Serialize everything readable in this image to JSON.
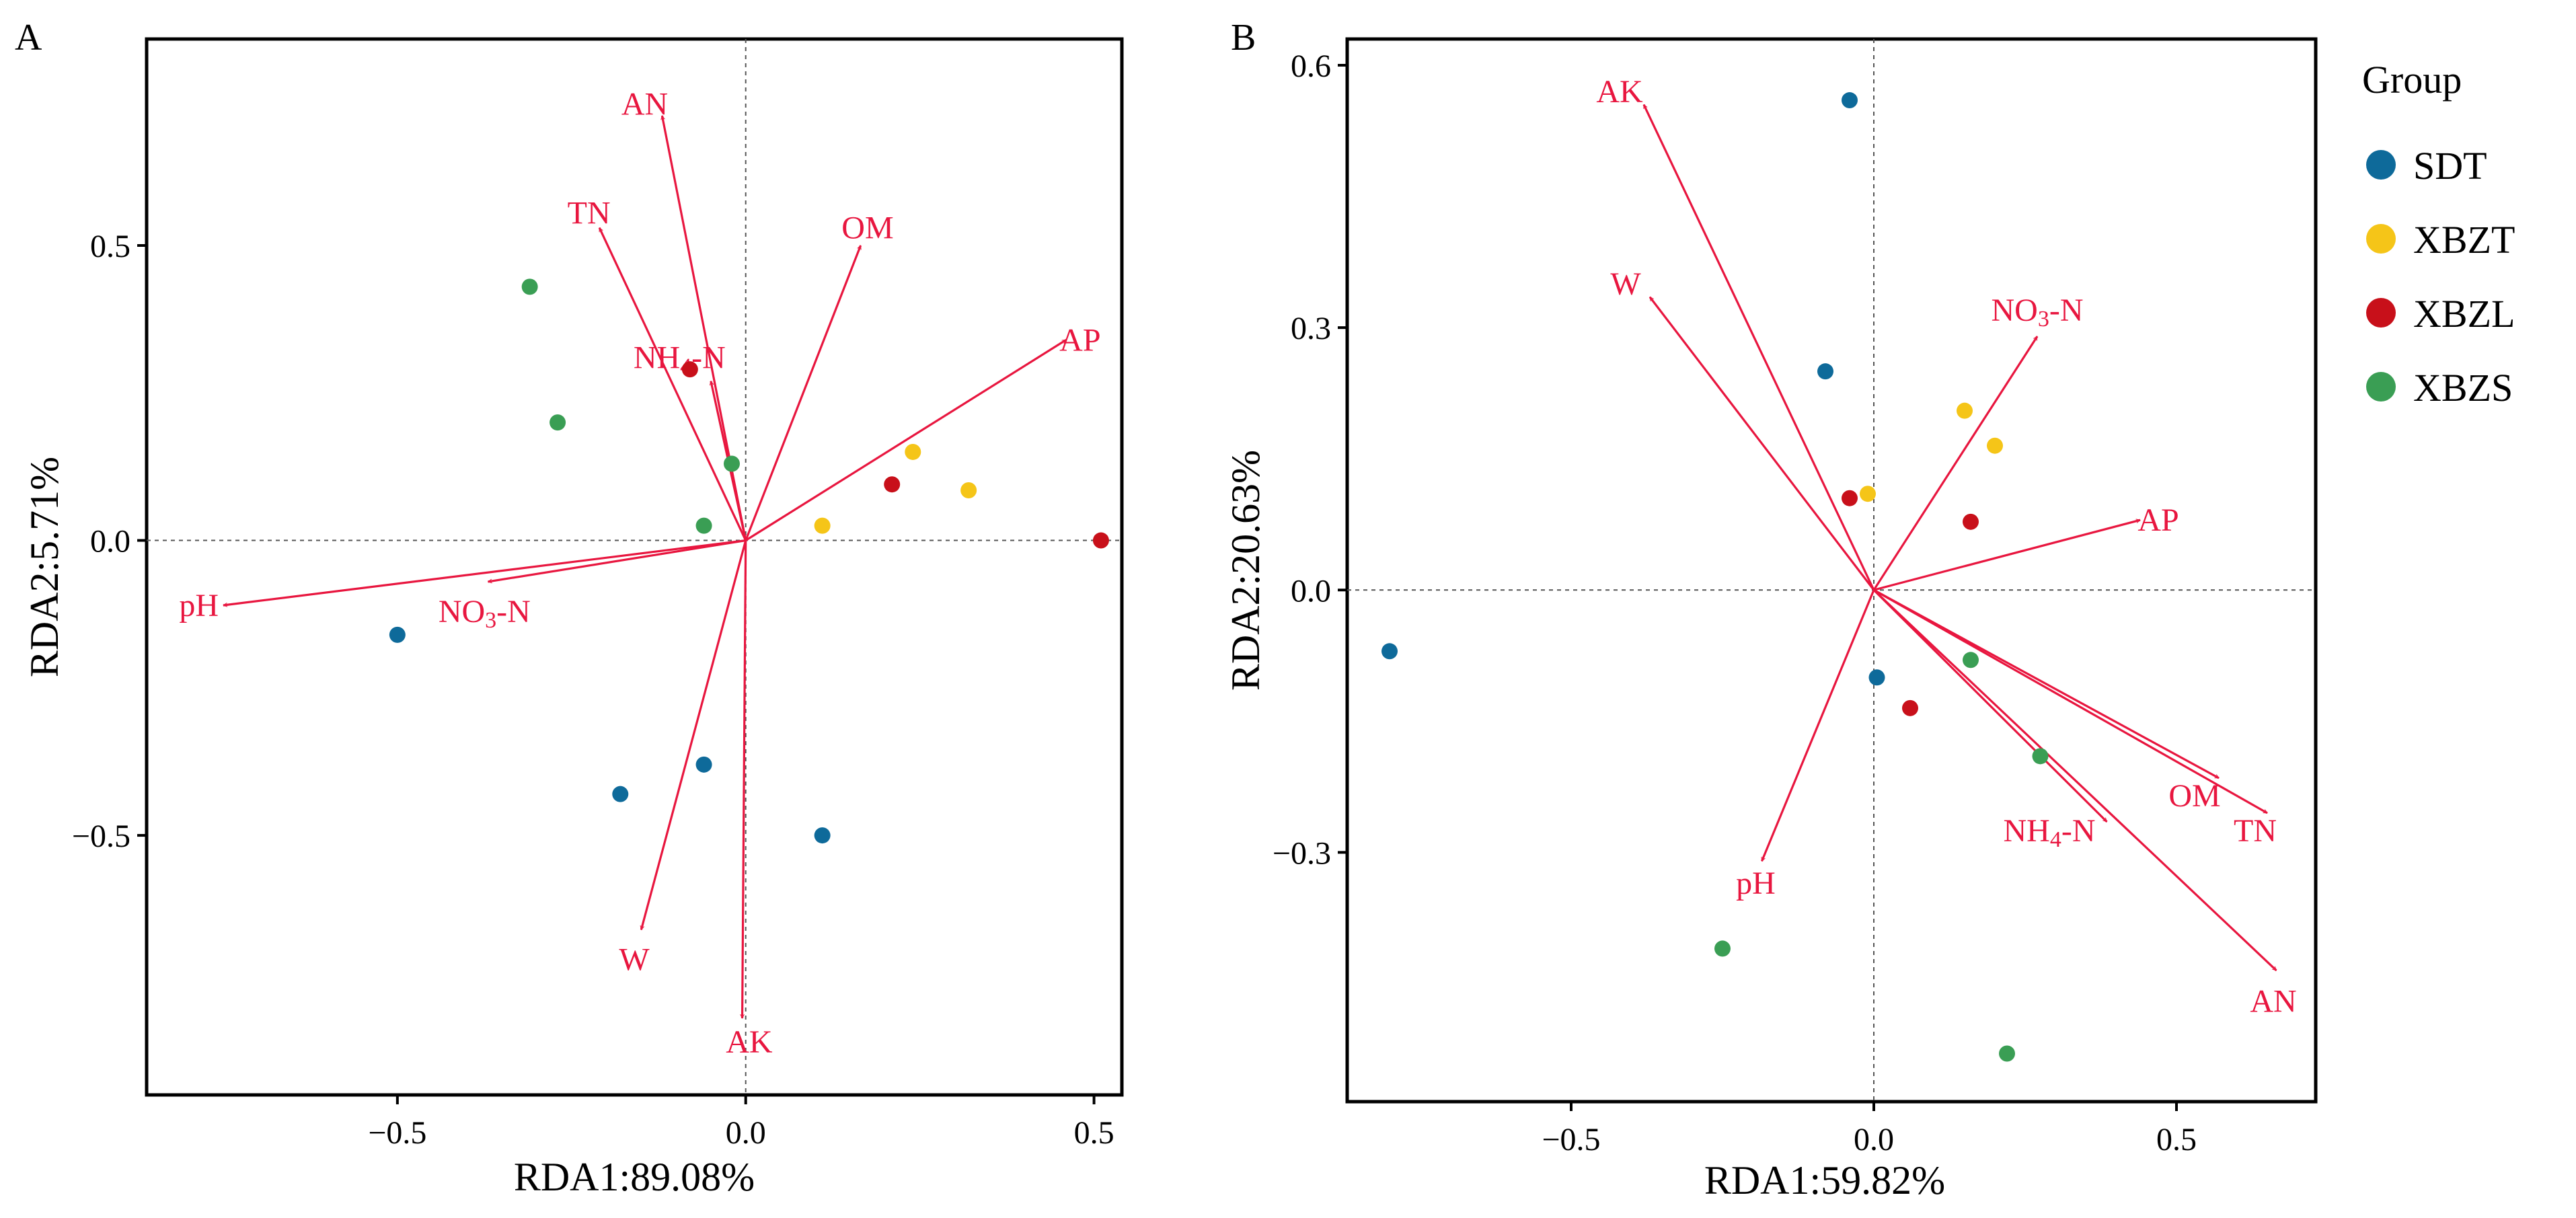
{
  "colors": {
    "arrow": "#E8163F",
    "axis": "#000000",
    "zero_line": "#555555",
    "groups": {
      "SDT": "#0E6A9A",
      "XBZT": "#F5C518",
      "XBZL": "#C8101A",
      "XBZS": "#3A9E54"
    }
  },
  "legend": {
    "title": "Group",
    "items": [
      {
        "label": "SDT",
        "color": "#0E6A9A"
      },
      {
        "label": "XBZT",
        "color": "#F5C518"
      },
      {
        "label": "XBZL",
        "color": "#C8101A"
      },
      {
        "label": "XBZS",
        "color": "#3A9E54"
      }
    ]
  },
  "chart_data": [
    {
      "type": "scatter",
      "panel_label": "A",
      "xlabel": "RDA1:89.08%",
      "ylabel": "RDA2:5.71%",
      "xlim": [
        -0.86,
        0.54
      ],
      "ylim": [
        -0.94,
        0.85
      ],
      "xticks": [
        -0.5,
        0.0,
        0.5
      ],
      "yticks": [
        -0.5,
        0.0,
        0.5
      ],
      "xtick_labels": [
        "−0.5",
        "0.0",
        "0.5"
      ],
      "ytick_labels": [
        "−0.5",
        "0.0",
        "0.5"
      ],
      "grid": false,
      "zero_lines": true,
      "arrows": [
        {
          "name": "AN",
          "x": -0.12,
          "y": 0.72,
          "lx": -0.145,
          "ly": 0.74
        },
        {
          "name": "TN",
          "x": -0.21,
          "y": 0.53,
          "lx": -0.225,
          "ly": 0.555
        },
        {
          "name": "OM",
          "x": 0.165,
          "y": 0.5,
          "lx": 0.175,
          "ly": 0.53
        },
        {
          "name": "NH4-N",
          "x": -0.05,
          "y": 0.27,
          "lx": -0.095,
          "ly": 0.31
        },
        {
          "name": "AP",
          "x": 0.46,
          "y": 0.34,
          "lx": 0.48,
          "ly": 0.34
        },
        {
          "name": "pH",
          "x": -0.75,
          "y": -0.11,
          "lx": -0.785,
          "ly": -0.11
        },
        {
          "name": "NO3-N",
          "x": -0.37,
          "y": -0.07,
          "lx": -0.375,
          "ly": -0.12
        },
        {
          "name": "W",
          "x": -0.15,
          "y": -0.66,
          "lx": -0.16,
          "ly": -0.71
        },
        {
          "name": "AK",
          "x": -0.005,
          "y": -0.81,
          "lx": 0.005,
          "ly": -0.85
        }
      ],
      "points": [
        {
          "group": "SDT",
          "x": -0.5,
          "y": -0.16
        },
        {
          "group": "SDT",
          "x": -0.18,
          "y": -0.43
        },
        {
          "group": "SDT",
          "x": -0.06,
          "y": -0.38
        },
        {
          "group": "SDT",
          "x": 0.11,
          "y": -0.5
        },
        {
          "group": "XBZT",
          "x": 0.11,
          "y": 0.025
        },
        {
          "group": "XBZT",
          "x": 0.24,
          "y": 0.15
        },
        {
          "group": "XBZT",
          "x": 0.32,
          "y": 0.085
        },
        {
          "group": "XBZL",
          "x": -0.08,
          "y": 0.29
        },
        {
          "group": "XBZL",
          "x": 0.21,
          "y": 0.095
        },
        {
          "group": "XBZL",
          "x": 0.51,
          "y": 0.0
        },
        {
          "group": "XBZS",
          "x": -0.31,
          "y": 0.43
        },
        {
          "group": "XBZS",
          "x": -0.27,
          "y": 0.2
        },
        {
          "group": "XBZS",
          "x": -0.02,
          "y": 0.13
        },
        {
          "group": "XBZS",
          "x": -0.06,
          "y": 0.025
        }
      ]
    },
    {
      "type": "scatter",
      "panel_label": "B",
      "xlabel": "RDA1:59.82%",
      "ylabel": "RDA2:20.63%",
      "xlim": [
        -0.87,
        0.73
      ],
      "ylim": [
        -0.585,
        0.63
      ],
      "xticks": [
        -0.5,
        0.0,
        0.5
      ],
      "yticks": [
        -0.3,
        0.0,
        0.3,
        0.6
      ],
      "xtick_labels": [
        "−0.5",
        "0.0",
        "0.5"
      ],
      "ytick_labels": [
        "−0.3",
        "0.0",
        "0.3",
        "0.6"
      ],
      "grid": false,
      "zero_lines": true,
      "arrows": [
        {
          "name": "AK",
          "x": -0.38,
          "y": 0.555,
          "lx": -0.42,
          "ly": 0.57
        },
        {
          "name": "W",
          "x": -0.37,
          "y": 0.335,
          "lx": -0.41,
          "ly": 0.35
        },
        {
          "name": "NO3-N",
          "x": 0.27,
          "y": 0.29,
          "lx": 0.27,
          "ly": 0.32
        },
        {
          "name": "AP",
          "x": 0.44,
          "y": 0.08,
          "lx": 0.47,
          "ly": 0.08
        },
        {
          "name": "OM",
          "x": 0.57,
          "y": -0.215,
          "lx": 0.53,
          "ly": -0.235
        },
        {
          "name": "TN",
          "x": 0.65,
          "y": -0.255,
          "lx": 0.63,
          "ly": -0.275
        },
        {
          "name": "NH4-N",
          "x": 0.385,
          "y": -0.265,
          "lx": 0.29,
          "ly": -0.275
        },
        {
          "name": "AN",
          "x": 0.665,
          "y": -0.435,
          "lx": 0.66,
          "ly": -0.47
        },
        {
          "name": "pH",
          "x": -0.185,
          "y": -0.31,
          "lx": -0.195,
          "ly": -0.335
        }
      ],
      "points": [
        {
          "group": "SDT",
          "x": -0.04,
          "y": 0.56
        },
        {
          "group": "SDT",
          "x": -0.08,
          "y": 0.25
        },
        {
          "group": "SDT",
          "x": -0.8,
          "y": -0.07
        },
        {
          "group": "SDT",
          "x": 0.005,
          "y": -0.1
        },
        {
          "group": "XBZT",
          "x": -0.01,
          "y": 0.11
        },
        {
          "group": "XBZT",
          "x": 0.15,
          "y": 0.205
        },
        {
          "group": "XBZT",
          "x": 0.2,
          "y": 0.165
        },
        {
          "group": "XBZL",
          "x": -0.04,
          "y": 0.105
        },
        {
          "group": "XBZL",
          "x": 0.16,
          "y": 0.078
        },
        {
          "group": "XBZL",
          "x": 0.06,
          "y": -0.135
        },
        {
          "group": "XBZS",
          "x": 0.16,
          "y": -0.08
        },
        {
          "group": "XBZS",
          "x": 0.275,
          "y": -0.19
        },
        {
          "group": "XBZS",
          "x": -0.25,
          "y": -0.41
        },
        {
          "group": "XBZS",
          "x": 0.22,
          "y": -0.53
        }
      ]
    }
  ]
}
